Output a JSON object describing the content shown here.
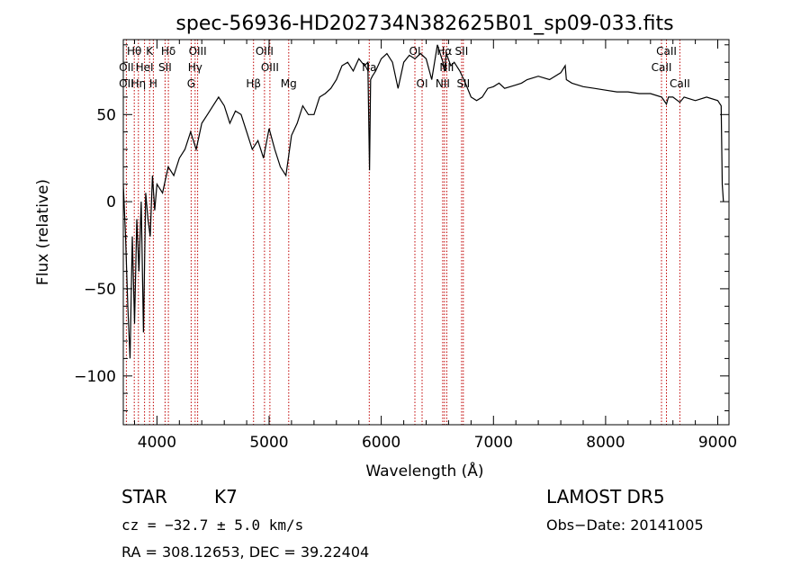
{
  "chart_data": {
    "type": "line",
    "title": "spec-56936-HD202734N382625B01_sp09-033.fits",
    "xlabel": "Wavelength (Å)",
    "ylabel": "Flux (relative)",
    "xlim": [
      3700,
      9100
    ],
    "ylim": [
      -128,
      93
    ],
    "xticks": [
      4000,
      5000,
      6000,
      7000,
      8000,
      9000
    ],
    "xtick_labels": [
      "4000",
      "5000",
      "6000",
      "7000",
      "8000",
      "9000"
    ],
    "yticks": [
      -100,
      -50,
      0,
      50
    ],
    "ytick_labels": [
      "−100",
      "−50",
      "0",
      "50"
    ],
    "series": [
      {
        "x": [
          3700,
          3720,
          3740,
          3760,
          3780,
          3800,
          3820,
          3840,
          3860,
          3880,
          3900,
          3920,
          3940,
          3960,
          3980,
          4000,
          4050,
          4100,
          4150,
          4200,
          4250,
          4300,
          4350,
          4400,
          4450,
          4500,
          4550,
          4600,
          4650,
          4700,
          4750,
          4800,
          4850,
          4900,
          4950,
          5000,
          5050,
          5100,
          5150,
          5200,
          5250,
          5300,
          5350,
          5400,
          5450,
          5500,
          5550,
          5600,
          5650,
          5700,
          5750,
          5800,
          5850,
          5880,
          5895,
          5905,
          5920,
          5950,
          6000,
          6050,
          6100,
          6150,
          6200,
          6250,
          6300,
          6350,
          6400,
          6450,
          6500,
          6550,
          6563,
          6580,
          6620,
          6650,
          6700,
          6750,
          6800,
          6850,
          6900,
          6950,
          7000,
          7050,
          7100,
          7150,
          7200,
          7250,
          7300,
          7400,
          7500,
          7600,
          7640,
          7650,
          7700,
          7800,
          7900,
          8000,
          8100,
          8200,
          8300,
          8400,
          8500,
          8542,
          8560,
          8600,
          8662,
          8700,
          8800,
          8900,
          9000,
          9030,
          9040,
          9050
        ],
        "y": [
          10,
          -20,
          -60,
          -90,
          -20,
          -70,
          -10,
          -40,
          0,
          -75,
          5,
          -10,
          -20,
          15,
          -5,
          10,
          5,
          20,
          15,
          25,
          30,
          40,
          30,
          45,
          50,
          55,
          60,
          55,
          45,
          52,
          50,
          40,
          30,
          35,
          25,
          42,
          30,
          20,
          15,
          38,
          45,
          55,
          50,
          50,
          60,
          62,
          65,
          70,
          78,
          80,
          75,
          82,
          78,
          80,
          18,
          70,
          72,
          75,
          82,
          85,
          80,
          65,
          80,
          84,
          82,
          85,
          82,
          70,
          90,
          80,
          75,
          85,
          78,
          80,
          75,
          68,
          60,
          58,
          60,
          65,
          66,
          68,
          65,
          66,
          67,
          68,
          70,
          72,
          70,
          74,
          78,
          70,
          68,
          66,
          65,
          64,
          63,
          63,
          62,
          62,
          60,
          56,
          60,
          60,
          57,
          60,
          58,
          60,
          58,
          55,
          10,
          0
        ]
      }
    ],
    "line_labels": [
      {
        "text": "Hθ",
        "x": 3798,
        "row": 0
      },
      {
        "text": "K",
        "x": 3934,
        "row": 0
      },
      {
        "text": "Hδ",
        "x": 4102,
        "row": 0
      },
      {
        "text": "OIII",
        "x": 4363,
        "row": 0
      },
      {
        "text": "OIII",
        "x": 4959,
        "row": 0
      },
      {
        "text": "OI",
        "x": 6300,
        "row": 0
      },
      {
        "text": "Hα",
        "x": 6563,
        "row": 0
      },
      {
        "text": "SII",
        "x": 6716,
        "row": 0
      },
      {
        "text": "CaII",
        "x": 8542,
        "row": 0
      },
      {
        "text": "OII",
        "x": 3727,
        "row": 1
      },
      {
        "text": "HeI",
        "x": 3889,
        "row": 1
      },
      {
        "text": "SII",
        "x": 4072,
        "row": 1
      },
      {
        "text": "Hγ",
        "x": 4340,
        "row": 1
      },
      {
        "text": "OIII",
        "x": 5007,
        "row": 1
      },
      {
        "text": "Na",
        "x": 5893,
        "row": 1
      },
      {
        "text": "NII",
        "x": 6584,
        "row": 1
      },
      {
        "text": "CaII",
        "x": 8498,
        "row": 1
      },
      {
        "text": "OII",
        "x": 3727,
        "row": 2
      },
      {
        "text": "Hη",
        "x": 3835,
        "row": 2
      },
      {
        "text": "H",
        "x": 3968,
        "row": 2
      },
      {
        "text": "G",
        "x": 4305,
        "row": 2
      },
      {
        "text": "Hβ",
        "x": 4861,
        "row": 2
      },
      {
        "text": "Mg",
        "x": 5175,
        "row": 2
      },
      {
        "text": "OI",
        "x": 6364,
        "row": 2
      },
      {
        "text": "NII",
        "x": 6548,
        "row": 2
      },
      {
        "text": "SII",
        "x": 6731,
        "row": 2
      },
      {
        "text": "CaII",
        "x": 8662,
        "row": 2
      }
    ],
    "line_markers": [
      3727,
      3798,
      3835,
      3889,
      3934,
      3968,
      4072,
      4102,
      4305,
      4340,
      4363,
      4861,
      4959,
      5007,
      5175,
      5893,
      6300,
      6364,
      6548,
      6563,
      6584,
      6716,
      6731,
      8498,
      8542,
      8662
    ]
  },
  "info": {
    "object_class": "STAR",
    "subclass": "K7",
    "survey": "LAMOST DR5",
    "cz_text": "cz = −32.7 ± 5.0 km/s",
    "obs_date": "Obs−Date: 20141005",
    "radec": "RA = 308.12653, DEC =  39.22404"
  }
}
